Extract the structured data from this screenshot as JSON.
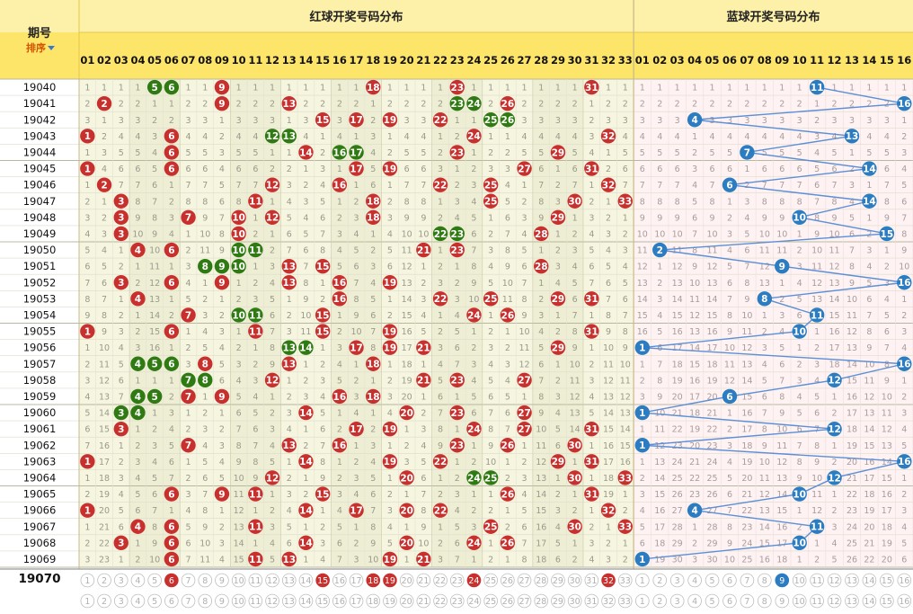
{
  "chart_data": {
    "type": "table",
    "header": {
      "issue_label": "期号",
      "sort_label": "排序",
      "red_title": "红球开奖号码分布",
      "blue_title": "蓝球开奖号码分布"
    },
    "red_numbers": [
      "01",
      "02",
      "03",
      "04",
      "05",
      "06",
      "07",
      "08",
      "09",
      "10",
      "11",
      "12",
      "13",
      "14",
      "15",
      "16",
      "17",
      "18",
      "19",
      "20",
      "21",
      "22",
      "23",
      "24",
      "25",
      "26",
      "27",
      "28",
      "29",
      "30",
      "31",
      "32",
      "33"
    ],
    "blue_numbers": [
      "01",
      "02",
      "03",
      "04",
      "05",
      "06",
      "07",
      "08",
      "09",
      "10",
      "11",
      "12",
      "13",
      "14",
      "15",
      "16"
    ],
    "rows": [
      {
        "issue": "19040",
        "red": [
          5,
          6,
          9,
          18,
          23,
          31
        ],
        "blue": 11
      },
      {
        "issue": "19041",
        "red": [
          2,
          9,
          13,
          23,
          24,
          26
        ],
        "blue": 16
      },
      {
        "issue": "19042",
        "red": [
          15,
          17,
          19,
          22,
          25,
          26
        ],
        "blue": 4
      },
      {
        "issue": "19043",
        "red": [
          1,
          6,
          12,
          13,
          24,
          32
        ],
        "blue": 13
      },
      {
        "issue": "19044",
        "red": [
          6,
          14,
          16,
          17,
          23,
          29
        ],
        "blue": 7
      },
      {
        "issue": "19045",
        "red": [
          1,
          6,
          17,
          19,
          27,
          31
        ],
        "blue": 14
      },
      {
        "issue": "19046",
        "red": [
          2,
          12,
          16,
          22,
          25,
          32
        ],
        "blue": 6
      },
      {
        "issue": "19047",
        "red": [
          3,
          11,
          18,
          25,
          30,
          33
        ],
        "blue": 14
      },
      {
        "issue": "19048",
        "red": [
          3,
          7,
          10,
          12,
          18,
          29
        ],
        "blue": 10
      },
      {
        "issue": "19049",
        "red": [
          3,
          10,
          22,
          23,
          28
        ],
        "blue": 15
      },
      {
        "issue": "19050",
        "red": [
          4,
          6,
          10,
          11,
          21,
          23
        ],
        "blue": 2
      },
      {
        "issue": "19051",
        "red": [
          8,
          9,
          10,
          13,
          15,
          28
        ],
        "blue": 9
      },
      {
        "issue": "19052",
        "red": [
          3,
          6,
          9,
          13,
          16,
          19
        ],
        "blue": 16
      },
      {
        "issue": "19053",
        "red": [
          4,
          16,
          22,
          25,
          29,
          31
        ],
        "blue": 8
      },
      {
        "issue": "19054",
        "red": [
          7,
          10,
          11,
          15,
          24,
          26
        ],
        "blue": 11
      },
      {
        "issue": "19055",
        "red": [
          1,
          6,
          11,
          15,
          19,
          31
        ],
        "blue": 10
      },
      {
        "issue": "19056",
        "red": [
          13,
          14,
          17,
          19,
          21,
          29
        ],
        "blue": 1
      },
      {
        "issue": "19057",
        "red": [
          4,
          5,
          6,
          8,
          13,
          18
        ],
        "blue": 16
      },
      {
        "issue": "19058",
        "red": [
          7,
          8,
          12,
          21,
          23,
          27
        ],
        "blue": 12
      },
      {
        "issue": "19059",
        "red": [
          4,
          5,
          7,
          9,
          16,
          18
        ],
        "blue": 6
      },
      {
        "issue": "19060",
        "red": [
          3,
          4,
          14,
          20,
          23,
          27
        ],
        "blue": 1
      },
      {
        "issue": "19061",
        "red": [
          3,
          17,
          19,
          24,
          27,
          31
        ],
        "blue": 12
      },
      {
        "issue": "19062",
        "red": [
          7,
          13,
          16,
          23,
          26,
          30
        ],
        "blue": 1
      },
      {
        "issue": "19063",
        "red": [
          1,
          14,
          19,
          22,
          29,
          31
        ],
        "blue": 16
      },
      {
        "issue": "19064",
        "red": [
          12,
          20,
          24,
          25,
          30,
          33
        ],
        "blue": 12
      },
      {
        "issue": "19065",
        "red": [
          6,
          9,
          11,
          15,
          26,
          31
        ],
        "blue": 10
      },
      {
        "issue": "19066",
        "red": [
          1,
          14,
          17,
          20,
          22,
          32
        ],
        "blue": 4
      },
      {
        "issue": "19067",
        "red": [
          4,
          6,
          11,
          25,
          30,
          33
        ],
        "blue": 11
      },
      {
        "issue": "19068",
        "red": [
          3,
          6,
          14,
          20,
          24,
          26
        ],
        "blue": 10
      },
      {
        "issue": "19069",
        "red": [
          6,
          11,
          13,
          19,
          21
        ],
        "blue": 1
      }
    ],
    "current_issue": "19070",
    "current_selection": {
      "red": [
        6,
        15,
        18,
        19,
        24,
        32
      ],
      "blue": 9
    },
    "group_colors": {
      "red_ball": "#c8302e",
      "green_ball": "#2f7a12",
      "blue_ball": "#2b7cc0",
      "red_bg": "#f5f5e0",
      "red_bg_alt": "#eeeed5",
      "blue_bg": "#fff2f2",
      "header_bg": "#fde56a",
      "trend_line": "#5b8fd6"
    }
  }
}
